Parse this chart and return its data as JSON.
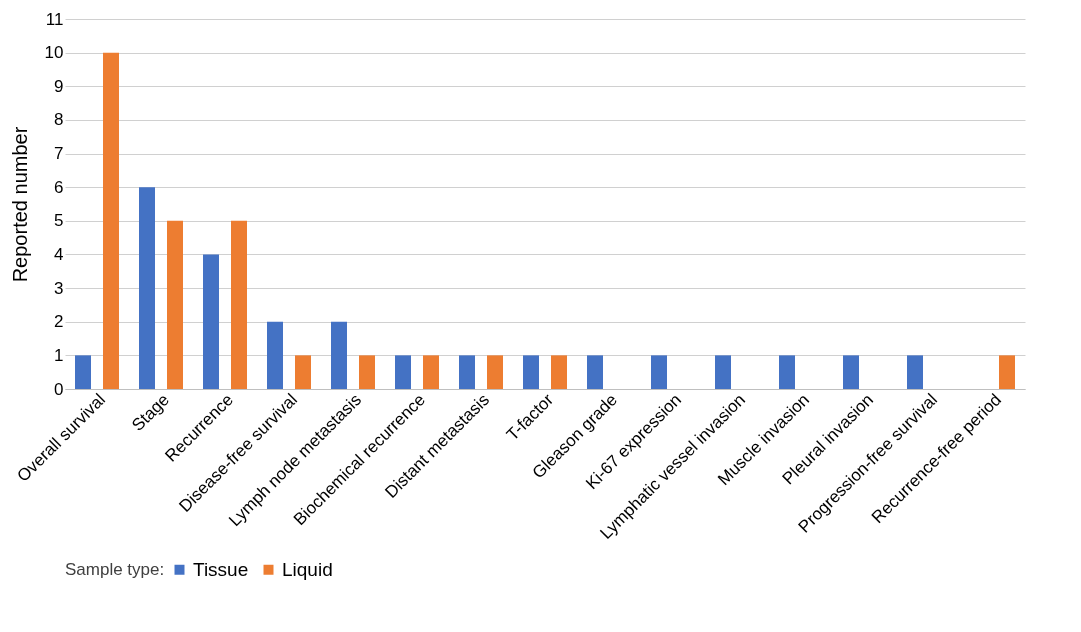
{
  "chart_data": {
    "type": "bar",
    "ylabel": "Reported number",
    "legend_title": "Sample type:",
    "categories": [
      "Overall survival",
      "Stage",
      "Recurrence",
      "Disease-free survival",
      "Lymph node metastasis",
      "Biochemical recurrence",
      "Distant metastasis",
      "T-factor",
      "Gleason grade",
      "Ki-67 expression",
      "Lymphatic vessel invasion",
      "Muscle invasion",
      "Pleural invasion",
      "Progression-free survival",
      "Recurrence-free period"
    ],
    "series": [
      {
        "name": "Tissue",
        "color": "#4472c4",
        "values": [
          1,
          6,
          4,
          2,
          2,
          1,
          1,
          1,
          1,
          1,
          1,
          1,
          1,
          1,
          0
        ]
      },
      {
        "name": "Liquid",
        "color": "#ed7d31",
        "values": [
          10,
          5,
          5,
          1,
          1,
          1,
          1,
          1,
          0,
          0,
          0,
          0,
          0,
          0,
          1
        ]
      }
    ],
    "ylim": [
      0,
      11
    ],
    "yticks": [
      0,
      1,
      2,
      3,
      4,
      5,
      6,
      7,
      8,
      9,
      10,
      11
    ],
    "grid": "y",
    "legend": "bottom"
  }
}
